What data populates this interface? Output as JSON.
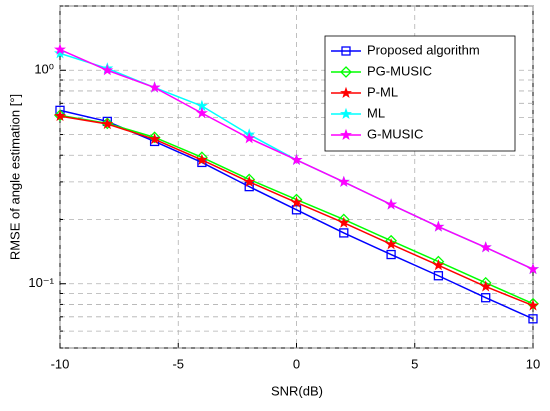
{
  "chart_data": {
    "type": "line",
    "xlabel": "SNR(dB)",
    "ylabel": "RMSE of angle estimation [°]",
    "x": [
      -10,
      -8,
      -6,
      -4,
      -2,
      0,
      2,
      4,
      6,
      8,
      10
    ],
    "series": [
      {
        "name": "Proposed algorithm",
        "color": "#0000ff",
        "marker": "square",
        "values": [
          0.649,
          0.576,
          0.464,
          0.37,
          0.285,
          0.222,
          0.173,
          0.137,
          0.109,
          0.086,
          0.0685
        ]
      },
      {
        "name": "PG-MUSIC",
        "color": "#00ff00",
        "marker": "diamond",
        "values": [
          0.615,
          0.564,
          0.485,
          0.391,
          0.308,
          0.248,
          0.2,
          0.159,
          0.127,
          0.101,
          0.0806
        ]
      },
      {
        "name": "P-ML",
        "color": "#ff0000",
        "marker": "star",
        "values": [
          0.61,
          0.56,
          0.475,
          0.38,
          0.3,
          0.24,
          0.193,
          0.153,
          0.122,
          0.097,
          0.079
        ]
      },
      {
        "name": "ML",
        "color": "#00ffff",
        "marker": "star",
        "values": [
          1.2,
          1.02,
          0.83,
          0.68,
          0.5,
          0.38,
          0.3,
          0.235,
          0.185,
          0.148,
          0.117
        ]
      },
      {
        "name": "G-MUSIC",
        "color": "#ff00ff",
        "marker": "star",
        "values": [
          1.25,
          1.0,
          0.83,
          0.63,
          0.48,
          0.38,
          0.3,
          0.235,
          0.185,
          0.148,
          0.117
        ]
      }
    ],
    "xlim": [
      -10,
      10
    ],
    "xticks": [
      -10,
      -5,
      0,
      5,
      10
    ],
    "ylim": [
      0.05,
      2
    ],
    "ylog": true,
    "yticks": [
      {
        "value": 0.1,
        "label": "10⁻¹"
      },
      {
        "value": 1,
        "label": "10⁰"
      }
    ],
    "yminorticks": [
      0.05,
      0.06,
      0.07,
      0.08,
      0.09,
      0.2,
      0.3,
      0.4,
      0.5,
      0.6,
      0.7,
      0.8,
      0.9,
      2
    ],
    "grid": true,
    "legend": "upper right"
  }
}
